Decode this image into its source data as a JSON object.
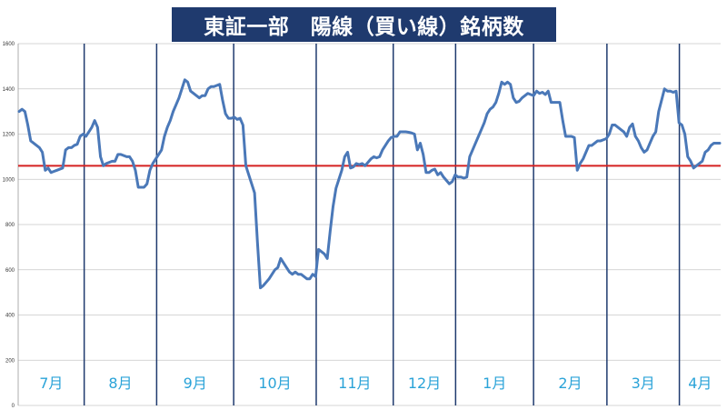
{
  "chart_data": {
    "type": "line",
    "title": "東証一部　陽線（買い線）銘柄数",
    "xlabel": "",
    "ylabel": "",
    "ylim": [
      0,
      1600
    ],
    "yticks": [
      "0",
      "200",
      "400",
      "600",
      "800",
      "1000",
      "1200",
      "1400",
      "1600"
    ],
    "grid": true,
    "months": [
      "7月",
      "8月",
      "9月",
      "10月",
      "11月",
      "12月",
      "1月",
      "2月",
      "3月",
      "4月"
    ],
    "month_widths": [
      72,
      79,
      84,
      90,
      84,
      68,
      85,
      80,
      79,
      45
    ],
    "reference_line": 1060,
    "colors": {
      "series": "#4a78b8",
      "reference": "#d42020",
      "divider": "#1f3a6e",
      "month_label": "#2aa3d8",
      "title_bg": "#1f3a6e"
    },
    "series": [
      {
        "values": [
          1300,
          1310,
          1300,
          1240,
          1170,
          1160,
          1150,
          1140,
          1120,
          1040,
          1050,
          1030,
          1035,
          1040,
          1045,
          1050,
          1130,
          1140,
          1140,
          1150,
          1155,
          1190,
          1200,
          1190,
          1210,
          1230,
          1260,
          1230,
          1100,
          1060,
          1070,
          1075,
          1080,
          1080,
          1110,
          1110,
          1105,
          1100,
          1100,
          1080,
          1040,
          965,
          965,
          965,
          980,
          1040,
          1070,
          1090,
          1110,
          1130,
          1190,
          1230,
          1260,
          1300,
          1330,
          1360,
          1400,
          1440,
          1430,
          1390,
          1380,
          1370,
          1360,
          1370,
          1370,
          1400,
          1410,
          1410,
          1415,
          1420,
          1350,
          1290,
          1270,
          1270,
          1275,
          1265,
          1270,
          1240,
          1060,
          1020,
          980,
          940,
          720,
          520,
          530,
          545,
          560,
          580,
          600,
          610,
          650,
          630,
          610,
          590,
          580,
          590,
          580,
          580,
          570,
          560,
          560,
          580,
          570,
          690,
          680,
          670,
          650,
          770,
          880,
          960,
          1000,
          1040,
          1100,
          1120,
          1050,
          1055,
          1070,
          1065,
          1070,
          1060,
          1075,
          1090,
          1100,
          1095,
          1100,
          1130,
          1150,
          1170,
          1185,
          1190,
          1190,
          1210,
          1210,
          1210,
          1208,
          1205,
          1200,
          1130,
          1160,
          1110,
          1030,
          1030,
          1040,
          1045,
          1020,
          1030,
          1010,
          995,
          980,
          990,
          1020,
          1010,
          1010,
          1005,
          1010,
          1100,
          1130,
          1160,
          1190,
          1220,
          1250,
          1290,
          1310,
          1320,
          1340,
          1380,
          1430,
          1420,
          1430,
          1420,
          1360,
          1340,
          1345,
          1360,
          1370,
          1380,
          1375,
          1370,
          1390,
          1380,
          1385,
          1375,
          1390,
          1340,
          1340,
          1340,
          1340,
          1260,
          1190,
          1190,
          1190,
          1185,
          1040,
          1070,
          1090,
          1120,
          1150,
          1150,
          1160,
          1170,
          1170,
          1175,
          1180,
          1200,
          1240,
          1240,
          1230,
          1220,
          1210,
          1190,
          1230,
          1245,
          1190,
          1170,
          1140,
          1120,
          1130,
          1160,
          1190,
          1210,
          1300,
          1350,
          1400,
          1390,
          1390,
          1385,
          1390,
          1250,
          1240,
          1200,
          1100,
          1080,
          1050,
          1060,
          1070,
          1080,
          1120,
          1130,
          1150,
          1160,
          1160,
          1160
        ]
      }
    ]
  }
}
